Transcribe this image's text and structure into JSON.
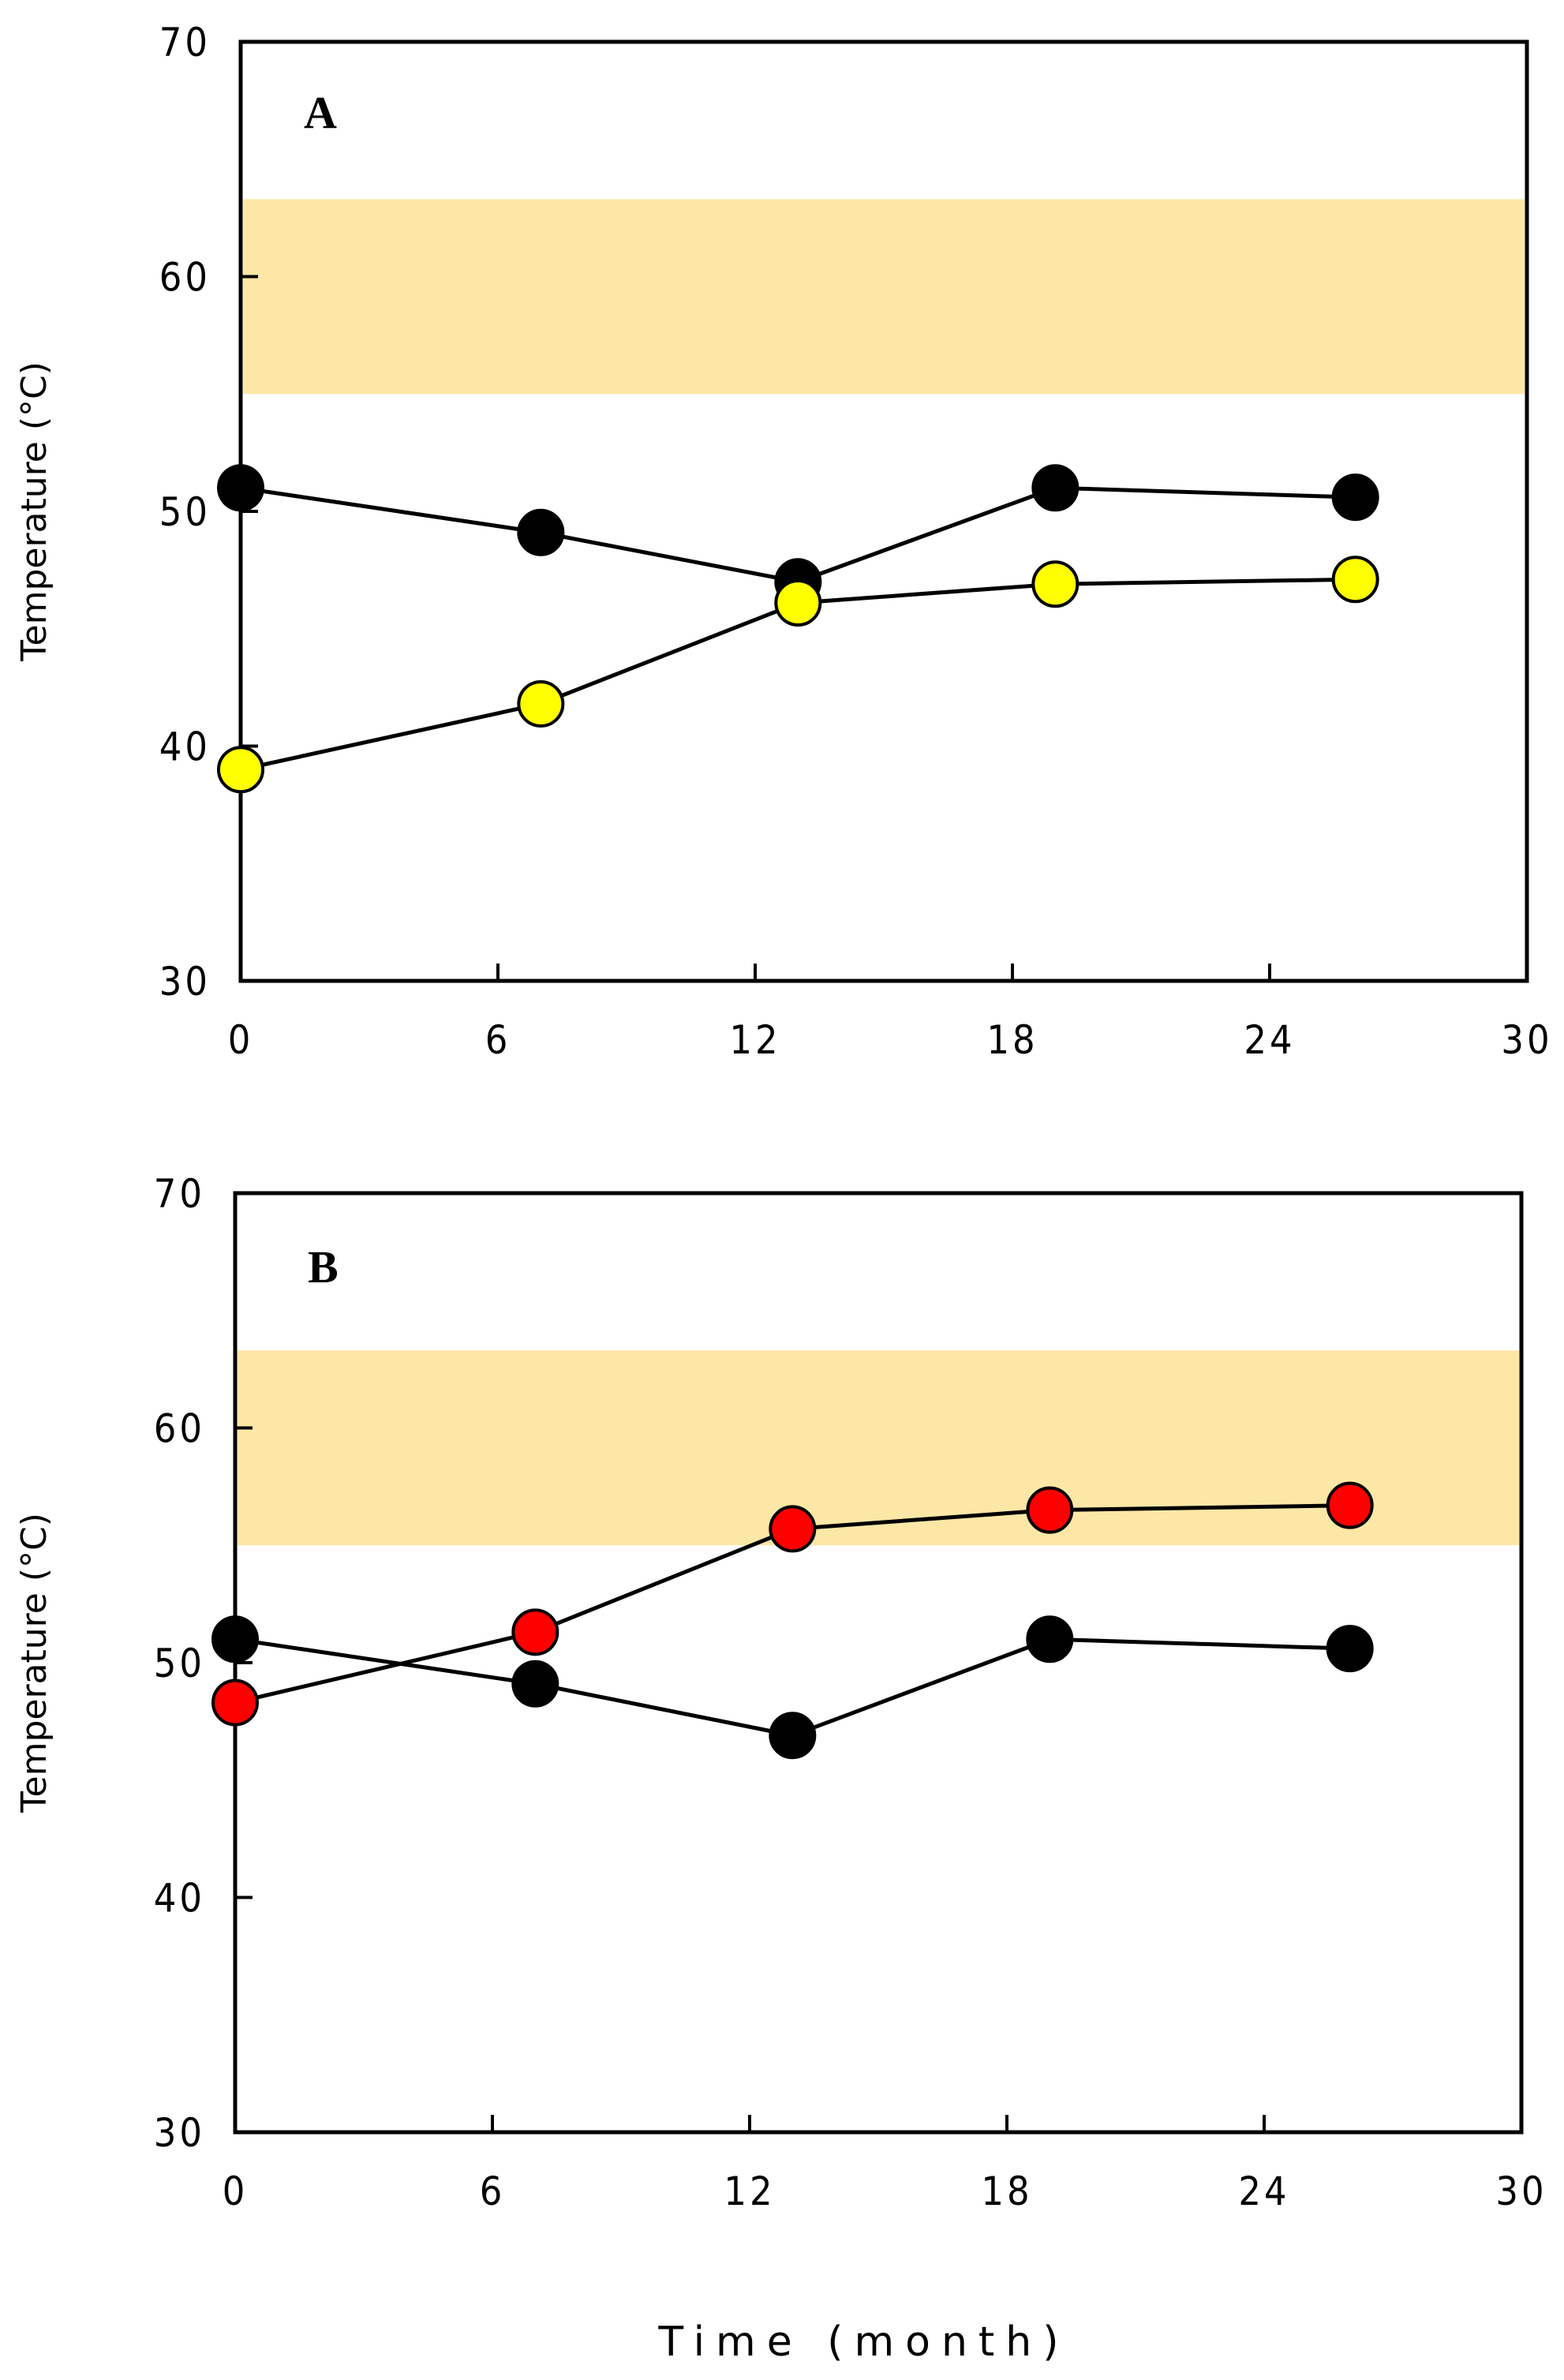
{
  "figure": {
    "xlabel": "Time (month)"
  },
  "chart_data": [
    {
      "type": "line",
      "panel_label": "A",
      "ylabel": "Temperature (°C)",
      "xlim": [
        0,
        30
      ],
      "ylim": [
        30,
        70
      ],
      "xticks": [
        "0",
        "6",
        "12",
        "18",
        "24",
        "30"
      ],
      "yticks": [
        "30",
        "40",
        "50",
        "60",
        "70"
      ],
      "xtick_values": [
        0,
        6,
        12,
        18,
        24,
        30
      ],
      "ytick_values": [
        30,
        40,
        50,
        60,
        70
      ],
      "band": {
        "y0": 55,
        "y1": 63.3,
        "color": "#fde7a6"
      },
      "series": [
        {
          "name": "black series",
          "color": "#000000",
          "x": [
            0,
            7,
            13,
            19,
            26
          ],
          "y": [
            51,
            49.1,
            47,
            51,
            50.6
          ]
        },
        {
          "name": "yellow series",
          "color": "#ffff00",
          "x": [
            0,
            7,
            13,
            19,
            26
          ],
          "y": [
            39,
            41.8,
            46.1,
            46.9,
            47.1
          ]
        }
      ]
    },
    {
      "type": "line",
      "panel_label": "B",
      "ylabel": "Temperature (°C)",
      "xlim": [
        0,
        30
      ],
      "ylim": [
        30,
        70
      ],
      "xticks": [
        "0",
        "6",
        "12",
        "18",
        "24",
        "30"
      ],
      "yticks": [
        "30",
        "40",
        "50",
        "60",
        "70"
      ],
      "xtick_values": [
        0,
        6,
        12,
        18,
        24,
        30
      ],
      "ytick_values": [
        30,
        40,
        50,
        60,
        70
      ],
      "band": {
        "y0": 55,
        "y1": 63.3,
        "color": "#fde7a6"
      },
      "series": [
        {
          "name": "black series",
          "color": "#000000",
          "x": [
            0,
            7,
            13,
            19,
            26
          ],
          "y": [
            51,
            49.1,
            46.9,
            51,
            50.6
          ]
        },
        {
          "name": "red series",
          "color": "#ff0000",
          "x": [
            0,
            7,
            13,
            19,
            26
          ],
          "y": [
            48.3,
            51.3,
            55.7,
            56.5,
            56.7
          ]
        }
      ]
    }
  ]
}
